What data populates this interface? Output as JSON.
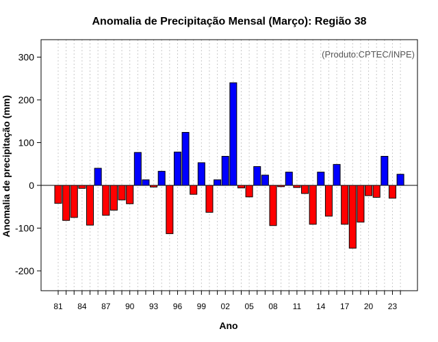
{
  "chart_data": {
    "type": "bar",
    "title": "Anomalia de Precipitação Mensal (Março): Região 38",
    "xlabel": "Ano",
    "ylabel": "Anomalia de precipitação (mm)",
    "credit": "(Produto:CPTEC/INPE)",
    "ylim": [
      -250,
      340
    ],
    "yticks": [
      -200,
      -100,
      0,
      100,
      200,
      300
    ],
    "years": [
      1981,
      1982,
      1983,
      1984,
      1985,
      1986,
      1987,
      1988,
      1989,
      1990,
      1991,
      1992,
      1993,
      1994,
      1995,
      1996,
      1997,
      1998,
      1999,
      2000,
      2001,
      2002,
      2003,
      2004,
      2005,
      2006,
      2007,
      2008,
      2009,
      2010,
      2011,
      2012,
      2013,
      2014,
      2015,
      2016,
      2017,
      2018,
      2019,
      2020,
      2021,
      2022,
      2023,
      2024
    ],
    "xtick_labels": [
      "81",
      "84",
      "87",
      "90",
      "93",
      "96",
      "99",
      "02",
      "05",
      "08",
      "11",
      "14",
      "17",
      "20",
      "23"
    ],
    "values": [
      -42,
      -82,
      -75,
      -7,
      -93,
      40,
      -70,
      -58,
      -34,
      -43,
      77,
      13,
      -4,
      33,
      -113,
      78,
      124,
      -21,
      53,
      -63,
      13,
      68,
      240,
      -6,
      -27,
      44,
      24,
      -94,
      -3,
      31,
      -5,
      -19,
      -91,
      31,
      -72,
      49,
      -91,
      -147,
      -86,
      -24,
      -28,
      68,
      -30,
      26
    ],
    "colors": {
      "positive": "#0000ff",
      "negative": "#ff0000"
    }
  }
}
